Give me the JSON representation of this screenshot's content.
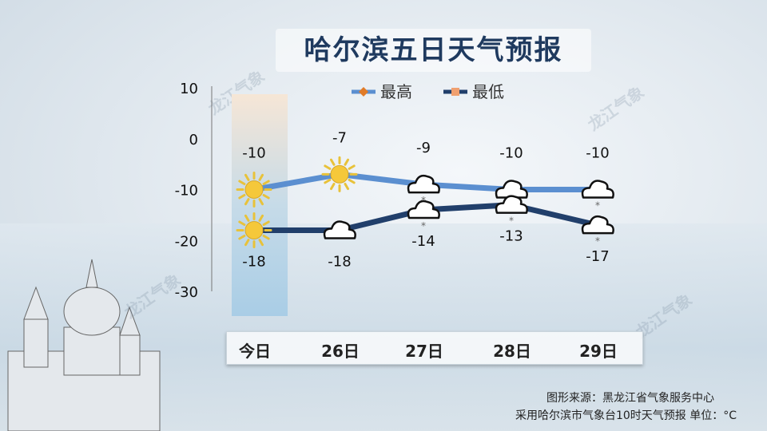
{
  "title": "哈尔滨五日天气预报",
  "watermark": "龙江气象",
  "source": {
    "line1": "图形来源：黑龙江省气象服务中心",
    "line2": "采用哈尔滨市气象台10时天气预报 单位：°C"
  },
  "chart_data": {
    "type": "line",
    "categories": [
      "今日",
      "26日",
      "27日",
      "28日",
      "29日"
    ],
    "ylim": [
      -30,
      10
    ],
    "yticks": [
      10,
      0,
      -10,
      -20,
      -30
    ],
    "legend_position": "top",
    "series": [
      {
        "name": "最高",
        "values": [
          -10,
          -7,
          -9,
          -10,
          -10
        ],
        "color": "#5b8fd0",
        "icons": [
          "sunny",
          "sunny",
          "light-snow",
          "light-snow",
          "light-snow"
        ]
      },
      {
        "name": "最低",
        "values": [
          -18,
          -18,
          -14,
          -13,
          -17
        ],
        "color": "#213f6b",
        "icons": [
          "sunny",
          "cloudy",
          "light-snow",
          "light-snow",
          "light-snow"
        ]
      }
    ]
  }
}
